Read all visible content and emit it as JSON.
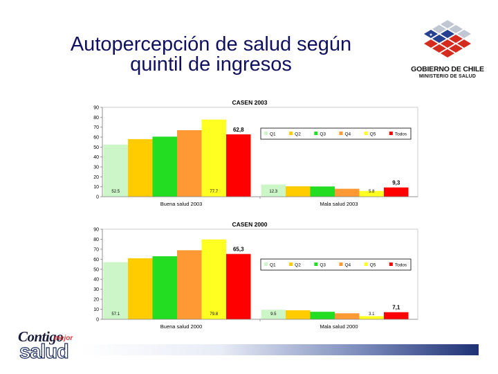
{
  "slide": {
    "title_line1": "Autopercepción de salud según",
    "title_line2": "quintil de ingresos"
  },
  "logo": {
    "name": "GOBIERNO DE CHILE",
    "ministry": "MINISTERIO DE SALUD"
  },
  "brand": {
    "word1": "Contigo",
    "word2": "mejor",
    "word3": "salud"
  },
  "colors": {
    "Q1": "#ccf5c8",
    "Q2": "#ffcc00",
    "Q3": "#22dd22",
    "Q4": "#ff9933",
    "Q5": "#ffff22",
    "Todos": "#ff0000",
    "footer_bar": "#1e3174"
  },
  "chart_data": [
    {
      "type": "bar",
      "title": "CASEN 2003",
      "categories": [
        "Buena salud 2003",
        "Mala salud 2003"
      ],
      "series": [
        {
          "name": "Q1",
          "values": [
            52.5,
            12.3
          ]
        },
        {
          "name": "Q2",
          "values": [
            58,
            10.5
          ]
        },
        {
          "name": "Q3",
          "values": [
            60.5,
            10.3
          ]
        },
        {
          "name": "Q4",
          "values": [
            67,
            8
          ]
        },
        {
          "name": "Q5",
          "values": [
            77.7,
            5.8
          ]
        },
        {
          "name": "Todos",
          "values": [
            62.8,
            9.3
          ]
        }
      ],
      "data_labels": [
        {
          "series": "Q1",
          "category": 0,
          "text": "52.5",
          "placement": "bottom"
        },
        {
          "series": "Q5",
          "category": 0,
          "text": "77.7",
          "placement": "bottom"
        },
        {
          "series": "Todos",
          "category": 0,
          "text": "62,8",
          "placement": "top"
        },
        {
          "series": "Q1",
          "category": 1,
          "text": "12.3",
          "placement": "bottom"
        },
        {
          "series": "Q5",
          "category": 1,
          "text": "5.8",
          "placement": "bottom"
        },
        {
          "series": "Todos",
          "category": 1,
          "text": "9,3",
          "placement": "top"
        }
      ],
      "yticks": [
        0,
        10,
        20,
        30,
        40,
        50,
        60,
        70,
        80,
        90
      ],
      "ylim": [
        0,
        90
      ],
      "legend": [
        "Q1",
        "Q2",
        "Q3",
        "Q4",
        "Q5",
        "Todos"
      ],
      "legend_position": "right",
      "grid": false
    },
    {
      "type": "bar",
      "title": "CASEN 2000",
      "categories": [
        "Buena salud 2000",
        "Mala salud 2000"
      ],
      "series": [
        {
          "name": "Q1",
          "values": [
            57.1,
            9.5
          ]
        },
        {
          "name": "Q2",
          "values": [
            61,
            9
          ]
        },
        {
          "name": "Q3",
          "values": [
            63,
            7.5
          ]
        },
        {
          "name": "Q4",
          "values": [
            69,
            6
          ]
        },
        {
          "name": "Q5",
          "values": [
            79.8,
            3.1
          ]
        },
        {
          "name": "Todos",
          "values": [
            65.3,
            7.1
          ]
        }
      ],
      "data_labels": [
        {
          "series": "Q1",
          "category": 0,
          "text": "57.1",
          "placement": "bottom"
        },
        {
          "series": "Q5",
          "category": 0,
          "text": "79.8",
          "placement": "bottom"
        },
        {
          "series": "Todos",
          "category": 0,
          "text": "65,3",
          "placement": "top"
        },
        {
          "series": "Q1",
          "category": 1,
          "text": "9.5",
          "placement": "bottom"
        },
        {
          "series": "Q5",
          "category": 1,
          "text": "3.1",
          "placement": "bottom"
        },
        {
          "series": "Todos",
          "category": 1,
          "text": "7,1",
          "placement": "top"
        }
      ],
      "yticks": [
        0,
        10,
        20,
        30,
        40,
        50,
        60,
        70,
        80,
        90
      ],
      "ylim": [
        0,
        90
      ],
      "legend": [
        "Q1",
        "Q2",
        "Q3",
        "Q4",
        "Q5",
        "Todos"
      ],
      "legend_position": "right",
      "grid": false
    }
  ]
}
